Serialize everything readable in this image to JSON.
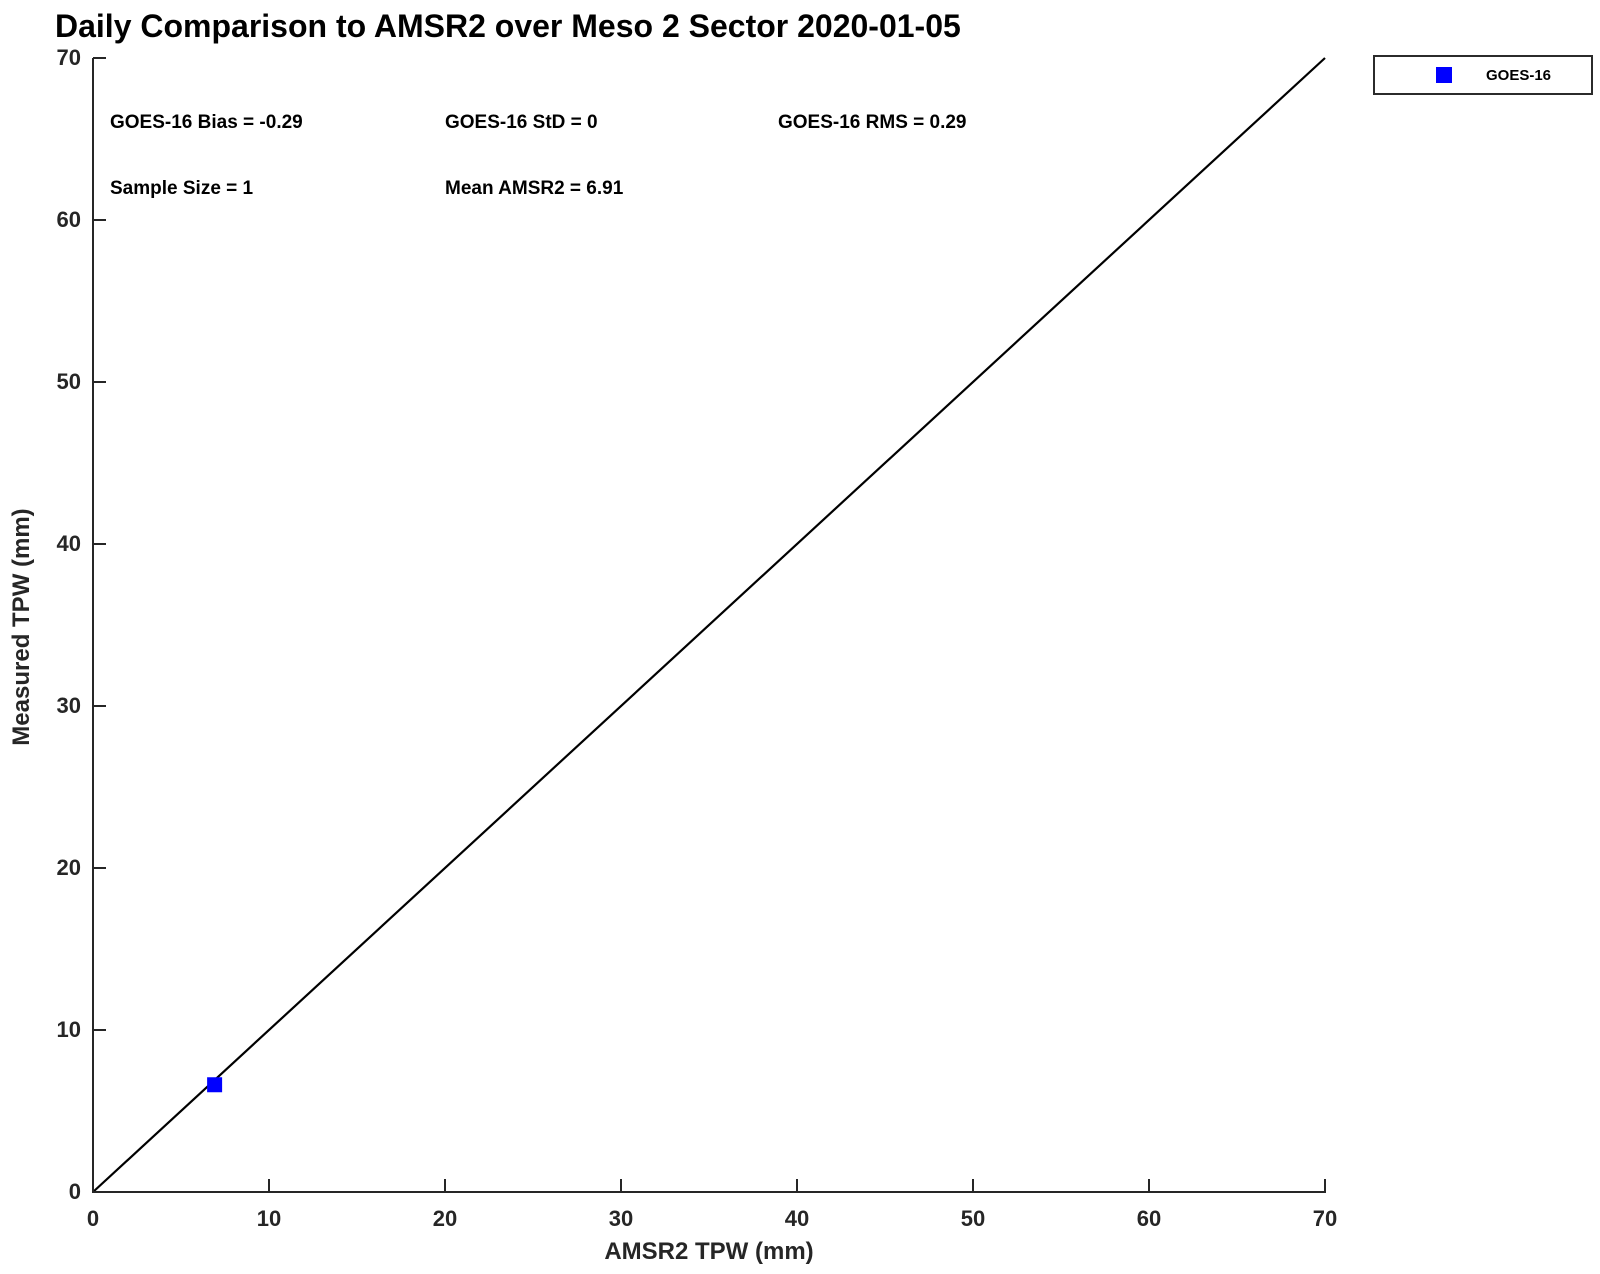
{
  "chart_data": {
    "type": "scatter",
    "title": "Daily Comparison to AMSR2 over Meso 2 Sector 2020-01-05",
    "xlabel": "AMSR2 TPW (mm)",
    "ylabel": "Measured TPW (mm)",
    "xlim": [
      0,
      70
    ],
    "ylim": [
      0,
      70
    ],
    "x_ticks": [
      0,
      10,
      20,
      30,
      40,
      50,
      60,
      70
    ],
    "y_ticks": [
      0,
      10,
      20,
      30,
      40,
      50,
      60,
      70
    ],
    "grid": false,
    "legend_position": "top-right-outside",
    "series": [
      {
        "name": "GOES-16",
        "marker": "square",
        "color": "#0000FF",
        "points": [
          {
            "x": 6.91,
            "y": 6.62
          }
        ]
      }
    ],
    "reference_line": {
      "type": "identity",
      "from": [
        0,
        0
      ],
      "to": [
        70,
        70
      ],
      "color": "#000000"
    }
  },
  "annotations": {
    "bias": "GOES-16 Bias = -0.29",
    "std": "GOES-16 StD = 0",
    "rms": "GOES-16 RMS = 0.29",
    "sample_size": "Sample Size = 1",
    "mean_amsr2": "Mean AMSR2 = 6.91"
  },
  "legend": {
    "label": "GOES-16",
    "marker_color": "#0000FF"
  },
  "colors": {
    "axis": "#262626",
    "identity_line": "#000000",
    "marker": "#0000FF",
    "background": "#FFFFFF"
  }
}
